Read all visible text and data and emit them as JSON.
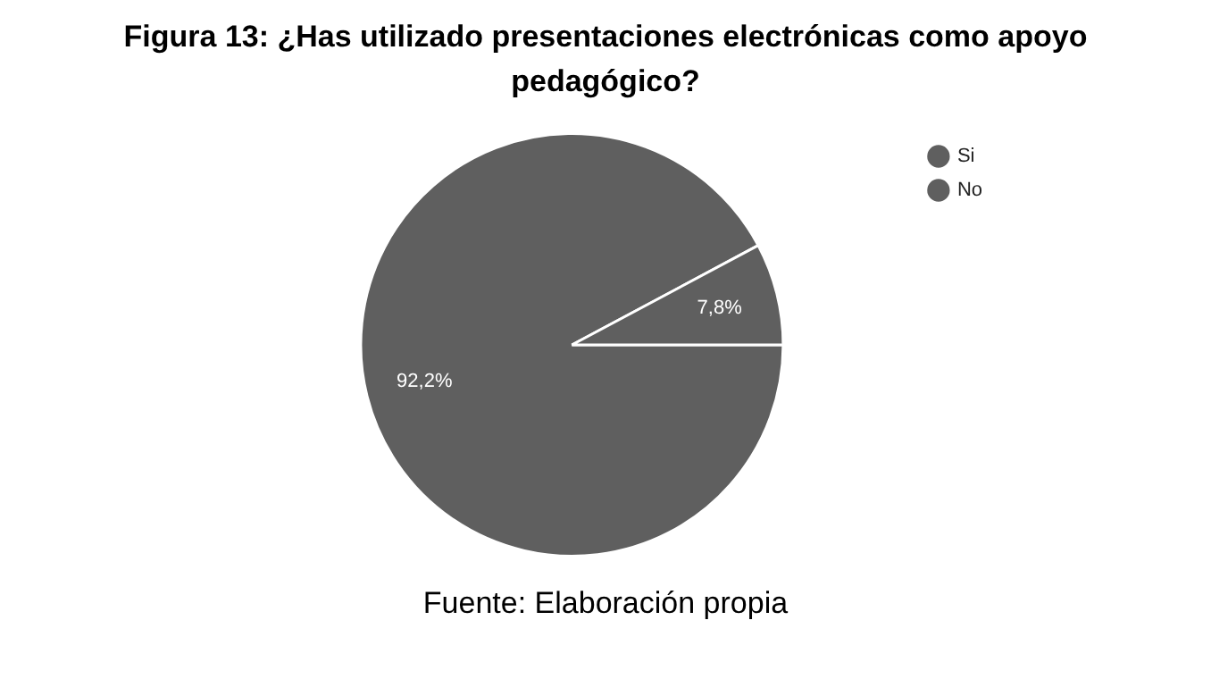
{
  "chart_data": {
    "type": "pie",
    "title": "Figura 13: ¿Has utilizado presentaciones electrónicas como apoyo pedagógico?",
    "categories": [
      "Si",
      "No"
    ],
    "values": [
      92.2,
      7.8
    ],
    "value_labels": [
      "92,2%",
      "7,8%"
    ],
    "colors": [
      "#5f5f5f",
      "#5f5f5f"
    ],
    "legend": "top right",
    "annotations": [
      "Fuente: Elaboración propia"
    ]
  }
}
